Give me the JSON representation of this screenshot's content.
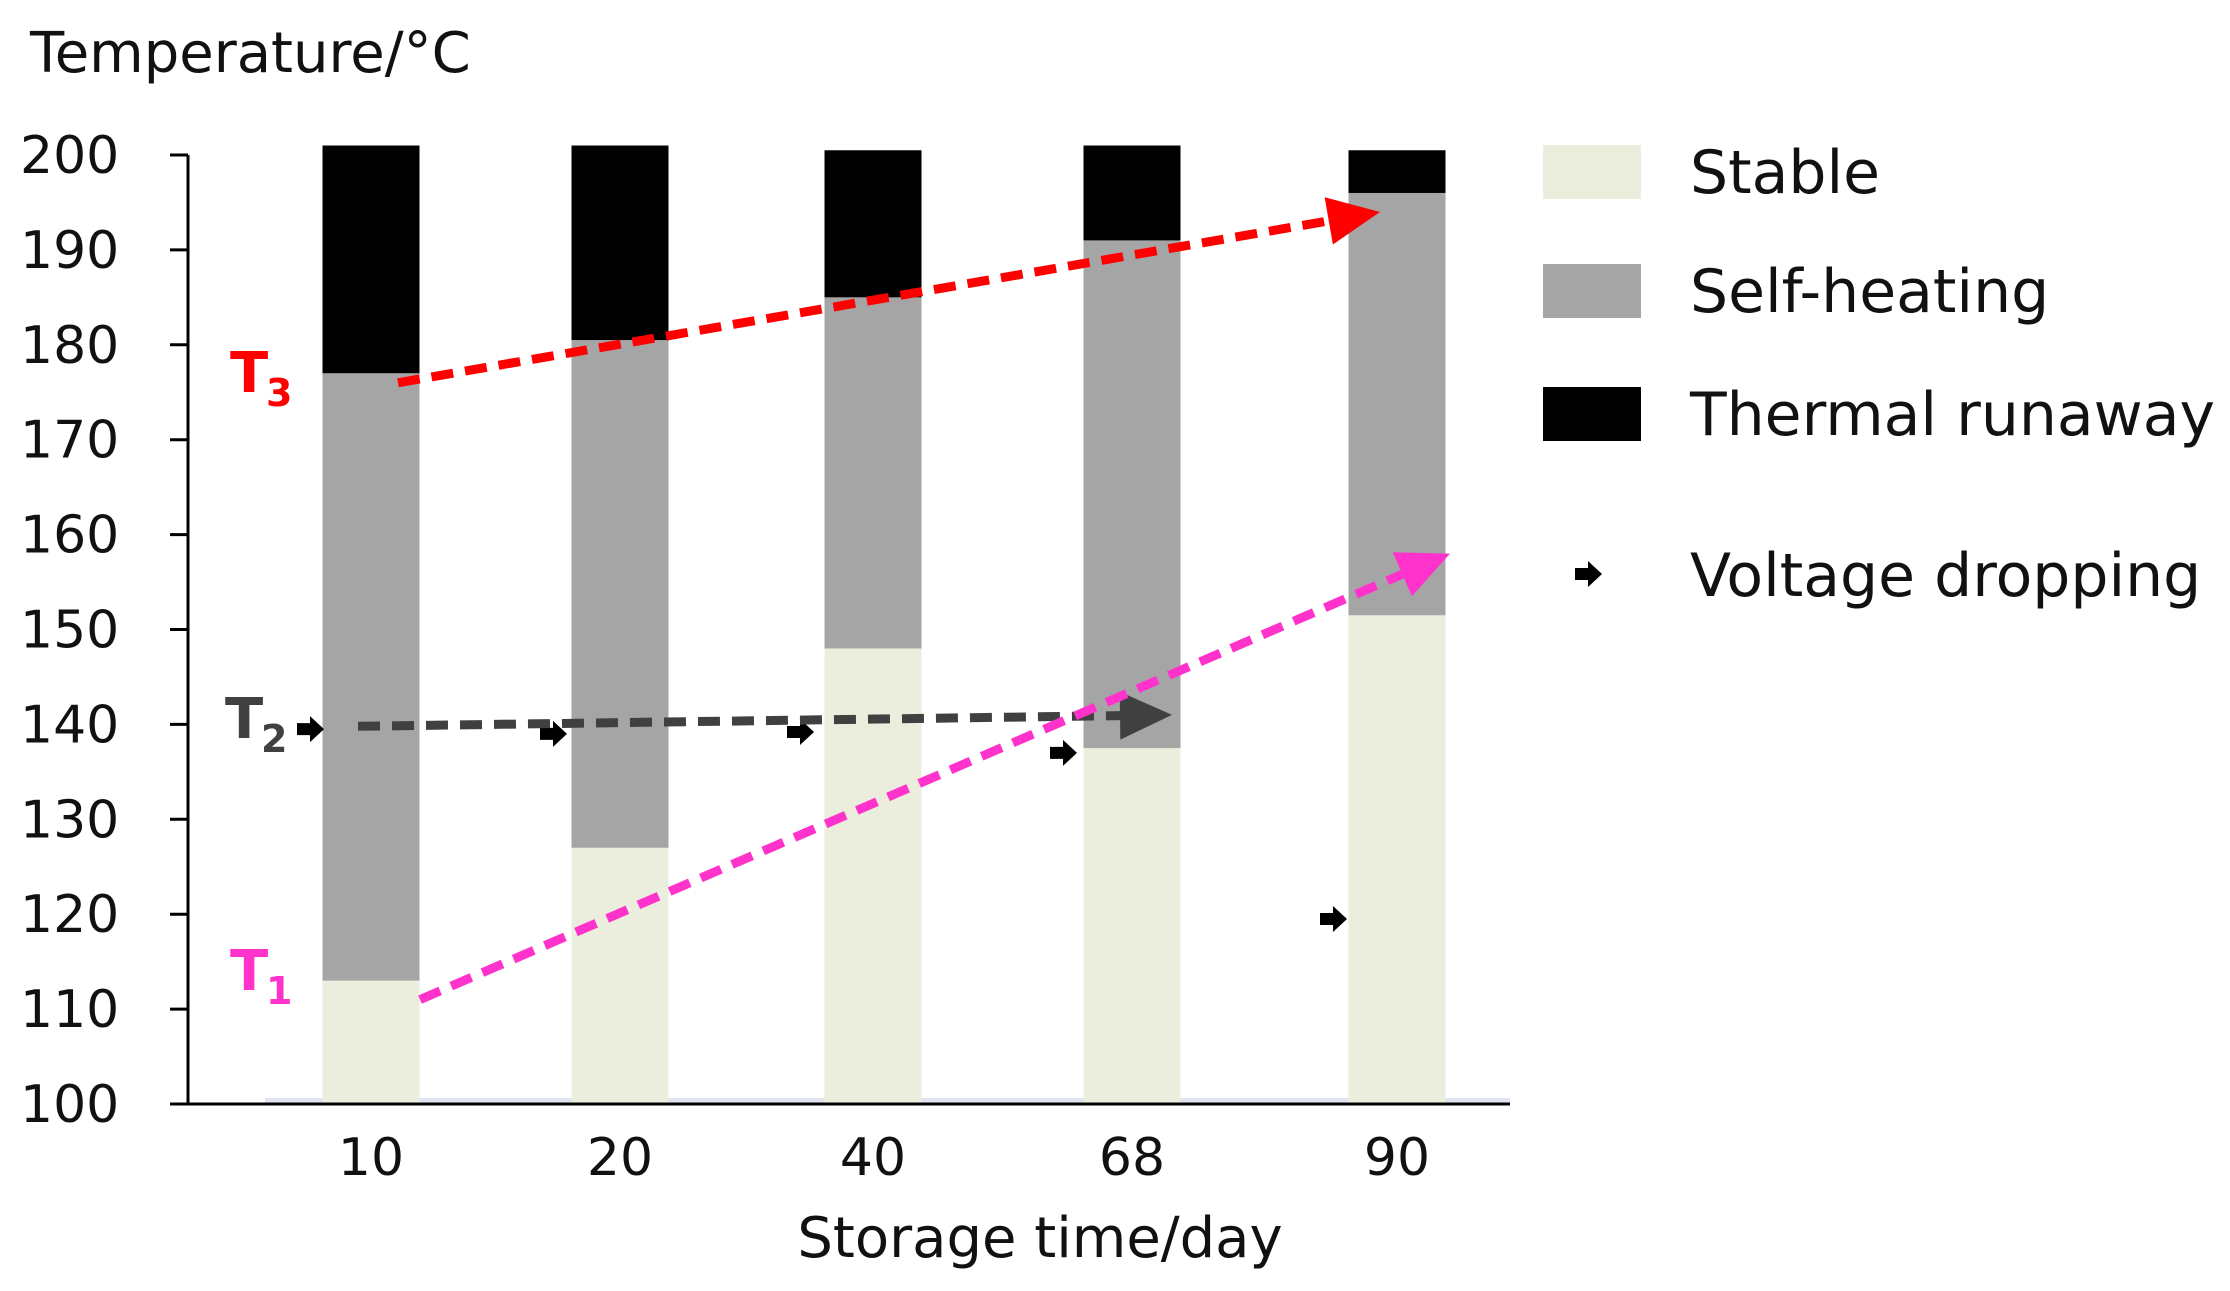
{
  "chart_data": {
    "type": "bar",
    "stacked": true,
    "title": "",
    "ylabel": "Temperature/°C",
    "xlabel": "Storage time/day",
    "ylim": [
      100,
      200
    ],
    "yticks": [
      100,
      110,
      120,
      130,
      140,
      150,
      160,
      170,
      180,
      190,
      200
    ],
    "categories": [
      "10",
      "20",
      "40",
      "68",
      "90"
    ],
    "series": [
      {
        "name": "Stable",
        "color": "#ebeedd",
        "ranges": [
          [
            100,
            113
          ],
          [
            100,
            127
          ],
          [
            100,
            148
          ],
          [
            100,
            137.5
          ],
          [
            100,
            151.5
          ]
        ]
      },
      {
        "name": "Self-heating",
        "color": "#a5a5a5",
        "ranges": [
          [
            113,
            177
          ],
          [
            127,
            180.5
          ],
          [
            148,
            185
          ],
          [
            137.5,
            191
          ],
          [
            151.5,
            196
          ]
        ]
      },
      {
        "name": "Thermal runaway",
        "color": "#000000",
        "ranges": [
          [
            177,
            201
          ],
          [
            180.5,
            201
          ],
          [
            185,
            200.5
          ],
          [
            191,
            201
          ],
          [
            196,
            200.5
          ]
        ]
      }
    ],
    "markers": {
      "name": "Voltage dropping",
      "points": [
        {
          "category": "10",
          "value": 139.5
        },
        {
          "category": "20",
          "value": 139
        },
        {
          "category": "40",
          "value": 139.2
        },
        {
          "category": "68",
          "value": 137
        },
        {
          "category": "90",
          "value": 119.5
        }
      ]
    },
    "trend_lines": [
      {
        "name": "T3",
        "letter": "T",
        "sub": "3",
        "color": "#ff0000",
        "from": {
          "category": "10",
          "value": 176
        },
        "to": {
          "category": "90",
          "value": 194
        }
      },
      {
        "name": "T2",
        "letter": "T",
        "sub": "2",
        "color": "#404040",
        "from": {
          "category": "10",
          "value": 139.8
        },
        "to": {
          "category": "68",
          "value": 141
        }
      },
      {
        "name": "T1",
        "letter": "T",
        "sub": "1",
        "color": "#ff33cc",
        "from": {
          "category": "10",
          "value": 111
        },
        "to": {
          "category": "90",
          "value": 158
        }
      }
    ],
    "legend": [
      {
        "label": "Stable",
        "kind": "swatch",
        "color": "#ebeedd"
      },
      {
        "label": "Self-heating",
        "kind": "swatch",
        "color": "#a5a5a5"
      },
      {
        "label": "Thermal runaway",
        "kind": "swatch",
        "color": "#000000"
      },
      {
        "label": "Voltage dropping",
        "kind": "marker",
        "color": "#000000"
      }
    ],
    "legend_position": "right"
  }
}
